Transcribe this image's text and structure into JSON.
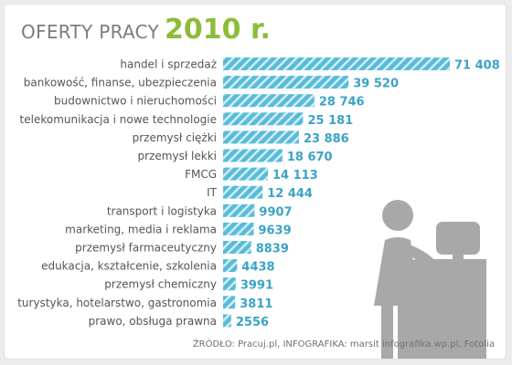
{
  "header": {
    "title_prefix": "OFERTY PRACY",
    "title_year": "2010 r."
  },
  "source": {
    "label": "ŹRÓDŁO:",
    "text": "Pracuj.pl, INFOGRAFIKA: marsit infografika.wp.pl, Fotolia"
  },
  "colors": {
    "bar": "#58bcd9",
    "bar_stripe": "#ffffff",
    "value_text": "#3aa3c6",
    "label_text": "#555555",
    "title_green": "#8cbd3a",
    "figure_gray": "#a8a8a8"
  },
  "illustration": "woman-at-computer-icon",
  "chart_data": {
    "type": "bar",
    "orientation": "horizontal",
    "categories": [
      "handel i sprzedaż",
      "bankowość, finanse, ubezpieczenia",
      "budownictwo i nieruchomości",
      "telekomunikacja i nowe technologie",
      "przemysł ciężki",
      "przemysł lekki",
      "FMCG",
      "IT",
      "transport i logistyka",
      "marketing, media i reklama",
      "przemysł farmaceutyczny",
      "edukacja, kształcenie, szkolenia",
      "przemysł chemiczny",
      "turystyka, hotelarstwo, gastronomia",
      "prawo, obsługa prawna"
    ],
    "values": [
      71408,
      39520,
      28746,
      25181,
      23886,
      18670,
      14113,
      12444,
      9907,
      9639,
      8839,
      4438,
      3991,
      3811,
      2556
    ],
    "value_labels": [
      "71 408",
      "39 520",
      "28 746",
      "25 181",
      "23 886",
      "18 670",
      "14 113",
      "12 444",
      "9907",
      "9639",
      "8839",
      "4438",
      "3991",
      "3811",
      "2556"
    ],
    "xlim": [
      0,
      71408
    ]
  }
}
